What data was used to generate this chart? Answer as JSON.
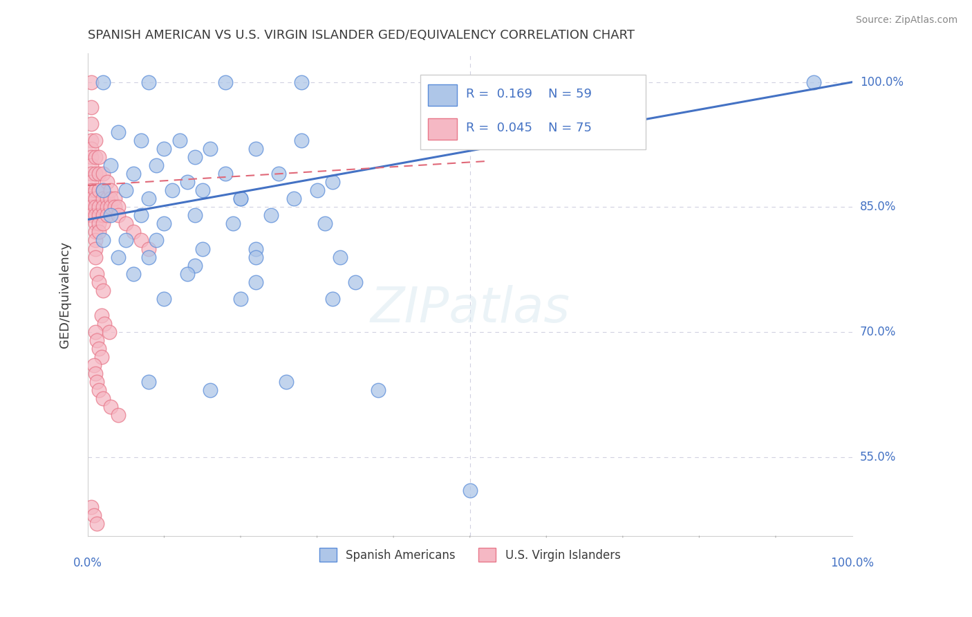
{
  "title": "SPANISH AMERICAN VS U.S. VIRGIN ISLANDER GED/EQUIVALENCY CORRELATION CHART",
  "source": "Source: ZipAtlas.com",
  "ylabel": "GED/Equivalency",
  "xlim": [
    0.0,
    1.0
  ],
  "ylim": [
    0.455,
    1.035
  ],
  "ytick_labels": [
    "55.0%",
    "70.0%",
    "85.0%",
    "100.0%"
  ],
  "ytick_values": [
    0.55,
    0.7,
    0.85,
    1.0
  ],
  "legend_blue_r": "0.169",
  "legend_blue_n": "59",
  "legend_pink_r": "0.045",
  "legend_pink_n": "75",
  "legend_label_blue": "Spanish Americans",
  "legend_label_pink": "U.S. Virgin Islanders",
  "blue_color": "#aec6e8",
  "pink_color": "#f5b8c4",
  "blue_edge_color": "#5b8dd9",
  "pink_edge_color": "#e8788a",
  "blue_line_color": "#4472c4",
  "pink_line_color": "#e06878",
  "title_color": "#3a3a3a",
  "source_color": "#888888",
  "axis_label_color": "#3a3a3a",
  "tick_color": "#4472c4",
  "grid_color": "#d0d0e0",
  "blue_trend": [
    0.0,
    0.835,
    1.0,
    1.0
  ],
  "pink_trend": [
    0.0,
    0.876,
    0.52,
    0.905
  ],
  "blue_scatter_x": [
    0.02,
    0.08,
    0.18,
    0.28,
    0.95,
    0.04,
    0.07,
    0.12,
    0.16,
    0.22,
    0.28,
    0.14,
    0.1,
    0.03,
    0.06,
    0.09,
    0.13,
    0.18,
    0.25,
    0.32,
    0.02,
    0.05,
    0.08,
    0.11,
    0.15,
    0.2,
    0.27,
    0.03,
    0.07,
    0.1,
    0.14,
    0.19,
    0.24,
    0.31,
    0.02,
    0.05,
    0.09,
    0.15,
    0.22,
    0.04,
    0.08,
    0.14,
    0.22,
    0.33,
    0.06,
    0.13,
    0.22,
    0.35,
    0.1,
    0.2,
    0.32,
    0.2,
    0.3,
    0.08,
    0.16,
    0.26,
    0.38,
    0.5
  ],
  "blue_scatter_y": [
    1.0,
    1.0,
    1.0,
    1.0,
    1.0,
    0.94,
    0.93,
    0.93,
    0.92,
    0.92,
    0.93,
    0.91,
    0.92,
    0.9,
    0.89,
    0.9,
    0.88,
    0.89,
    0.89,
    0.88,
    0.87,
    0.87,
    0.86,
    0.87,
    0.87,
    0.86,
    0.86,
    0.84,
    0.84,
    0.83,
    0.84,
    0.83,
    0.84,
    0.83,
    0.81,
    0.81,
    0.81,
    0.8,
    0.8,
    0.79,
    0.79,
    0.78,
    0.79,
    0.79,
    0.77,
    0.77,
    0.76,
    0.76,
    0.74,
    0.74,
    0.74,
    0.86,
    0.87,
    0.64,
    0.63,
    0.64,
    0.63,
    0.51
  ],
  "pink_scatter_x": [
    0.005,
    0.005,
    0.005,
    0.005,
    0.005,
    0.005,
    0.005,
    0.005,
    0.005,
    0.005,
    0.005,
    0.005,
    0.005,
    0.01,
    0.01,
    0.01,
    0.01,
    0.01,
    0.01,
    0.01,
    0.01,
    0.01,
    0.01,
    0.01,
    0.01,
    0.015,
    0.015,
    0.015,
    0.015,
    0.015,
    0.015,
    0.015,
    0.02,
    0.02,
    0.02,
    0.02,
    0.02,
    0.02,
    0.025,
    0.025,
    0.025,
    0.025,
    0.03,
    0.03,
    0.03,
    0.035,
    0.035,
    0.04,
    0.04,
    0.05,
    0.06,
    0.07,
    0.08,
    0.012,
    0.015,
    0.02,
    0.018,
    0.022,
    0.028,
    0.01,
    0.012,
    0.015,
    0.018,
    0.008,
    0.01,
    0.012,
    0.015,
    0.02,
    0.03,
    0.04,
    0.005,
    0.008,
    0.012
  ],
  "pink_scatter_y": [
    1.0,
    0.97,
    0.95,
    0.93,
    0.92,
    0.91,
    0.9,
    0.89,
    0.88,
    0.87,
    0.86,
    0.85,
    0.84,
    0.93,
    0.91,
    0.89,
    0.87,
    0.86,
    0.85,
    0.84,
    0.83,
    0.82,
    0.81,
    0.8,
    0.79,
    0.91,
    0.89,
    0.87,
    0.85,
    0.84,
    0.83,
    0.82,
    0.89,
    0.87,
    0.86,
    0.85,
    0.84,
    0.83,
    0.88,
    0.86,
    0.85,
    0.84,
    0.87,
    0.86,
    0.85,
    0.86,
    0.85,
    0.85,
    0.84,
    0.83,
    0.82,
    0.81,
    0.8,
    0.77,
    0.76,
    0.75,
    0.72,
    0.71,
    0.7,
    0.7,
    0.69,
    0.68,
    0.67,
    0.66,
    0.65,
    0.64,
    0.63,
    0.62,
    0.61,
    0.6,
    0.49,
    0.48,
    0.47
  ]
}
